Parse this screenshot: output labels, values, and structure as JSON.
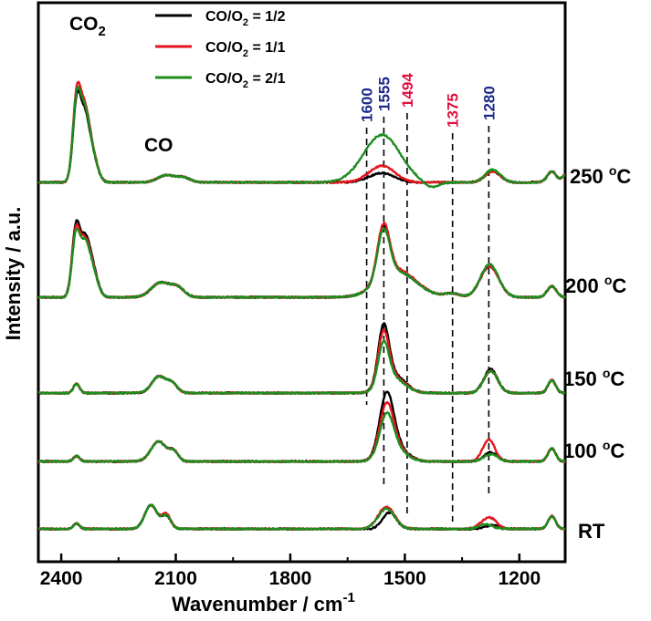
{
  "chart_data": {
    "type": "line",
    "xlabel": "Wavenumber / cm",
    "xlabel_sup": "-1",
    "ylabel": "Intensity / a.u.",
    "x_reversed": true,
    "xlim": [
      2460,
      1080
    ],
    "x_ticks": [
      2400,
      2100,
      1800,
      1500,
      1200
    ],
    "grid": false,
    "legend_position": "top-left",
    "legend": [
      {
        "pre": "CO/O",
        "sub": "2",
        "post": " = 1/2",
        "color": "#000000"
      },
      {
        "pre": "CO/O",
        "sub": "2",
        "post": " = 1/1",
        "color": "#e8131c"
      },
      {
        "pre": "CO/O",
        "sub": "2",
        "post": " = 2/1",
        "color": "#1e8c1e"
      }
    ],
    "annotations": {
      "co2": {
        "main": "CO",
        "sub": "2"
      },
      "co": "CO"
    },
    "peak_markers": [
      {
        "x": 1600,
        "label": "1600",
        "color": "#1c2a8a"
      },
      {
        "x": 1555,
        "label": "1555",
        "color": "#1c2a8a"
      },
      {
        "x": 1494,
        "label": "1494",
        "color": "#e01040"
      },
      {
        "x": 1375,
        "label": "1375",
        "color": "#e01040"
      },
      {
        "x": 1280,
        "label": "1280",
        "color": "#1c2a8a"
      }
    ],
    "temperatures": [
      {
        "label": "250 °C",
        "label_main": "250 ",
        "series": [
          {
            "color": "#000000",
            "peaks": [
              [
                2360,
                80,
                10
              ],
              [
                2340,
                62,
                12
              ],
              [
                2320,
                30,
                14
              ],
              [
                2125,
                8,
                22
              ],
              [
                2080,
                5,
                18
              ],
              [
                1560,
                10,
                34
              ],
              [
                1270,
                12,
                20
              ],
              [
                1115,
                12,
                12
              ],
              [
                1080,
                8,
                8
              ]
            ]
          },
          {
            "color": "#e8131c",
            "peaks": [
              [
                2360,
                88,
                10
              ],
              [
                2340,
                68,
                12
              ],
              [
                2320,
                32,
                14
              ],
              [
                2125,
                8,
                22
              ],
              [
                2080,
                5,
                18
              ],
              [
                1560,
                18,
                34
              ],
              [
                1270,
                12,
                20
              ],
              [
                1115,
                12,
                12
              ],
              [
                1080,
                8,
                8
              ]
            ]
          },
          {
            "color": "#1e8c1e",
            "peaks": [
              [
                2360,
                84,
                10
              ],
              [
                2340,
                65,
                12
              ],
              [
                2320,
                31,
                14
              ],
              [
                2125,
                8,
                22
              ],
              [
                2080,
                5,
                18
              ],
              [
                1560,
                52,
                48
              ],
              [
                1430,
                -6,
                20
              ],
              [
                1270,
                14,
                20
              ],
              [
                1115,
                12,
                12
              ],
              [
                1080,
                8,
                8
              ]
            ]
          }
        ]
      },
      {
        "label": "200 °C",
        "label_main": "200 ",
        "series": [
          {
            "color": "#000000",
            "peaks": [
              [
                2362,
                72,
                10
              ],
              [
                2340,
                52,
                12
              ],
              [
                2320,
                34,
                14
              ],
              [
                2140,
                16,
                24
              ],
              [
                2095,
                10,
                18
              ],
              [
                1556,
                56,
                16
              ],
              [
                1520,
                28,
                50
              ],
              [
                1376,
                4,
                20
              ],
              [
                1278,
                34,
                24
              ],
              [
                1115,
                12,
                12
              ]
            ]
          },
          {
            "color": "#e8131c",
            "peaks": [
              [
                2362,
                68,
                10
              ],
              [
                2340,
                50,
                12
              ],
              [
                2320,
                32,
                14
              ],
              [
                2140,
                16,
                24
              ],
              [
                2095,
                10,
                18
              ],
              [
                1556,
                58,
                16
              ],
              [
                1520,
                30,
                50
              ],
              [
                1376,
                4,
                20
              ],
              [
                1278,
                34,
                24
              ],
              [
                1115,
                12,
                12
              ]
            ]
          },
          {
            "color": "#1e8c1e",
            "peaks": [
              [
                2362,
                64,
                10
              ],
              [
                2340,
                48,
                12
              ],
              [
                2320,
                30,
                14
              ],
              [
                2140,
                16,
                24
              ],
              [
                2095,
                10,
                18
              ],
              [
                1556,
                54,
                16
              ],
              [
                1520,
                28,
                50
              ],
              [
                1376,
                4,
                20
              ],
              [
                1278,
                36,
                24
              ],
              [
                1115,
                12,
                12
              ]
            ]
          }
        ]
      },
      {
        "label": "150 °C",
        "label_main": "150 ",
        "series": [
          {
            "color": "#000000",
            "peaks": [
              [
                2360,
                10,
                8
              ],
              [
                2145,
                18,
                18
              ],
              [
                2110,
                10,
                14
              ],
              [
                1556,
                62,
                14
              ],
              [
                1530,
                20,
                30
              ],
              [
                1275,
                26,
                18
              ],
              [
                1115,
                14,
                10
              ]
            ]
          },
          {
            "color": "#e8131c",
            "peaks": [
              [
                2360,
                10,
                8
              ],
              [
                2145,
                18,
                18
              ],
              [
                2110,
                10,
                14
              ],
              [
                1556,
                56,
                14
              ],
              [
                1530,
                18,
                30
              ],
              [
                1275,
                24,
                18
              ],
              [
                1115,
                14,
                10
              ]
            ]
          },
          {
            "color": "#1e8c1e",
            "peaks": [
              [
                2360,
                10,
                8
              ],
              [
                2145,
                18,
                18
              ],
              [
                2110,
                10,
                14
              ],
              [
                1556,
                46,
                14
              ],
              [
                1530,
                16,
                30
              ],
              [
                1275,
                24,
                18
              ],
              [
                1115,
                14,
                10
              ]
            ]
          }
        ]
      },
      {
        "label": "100 °C",
        "label_main": "100 ",
        "series": [
          {
            "color": "#000000",
            "peaks": [
              [
                2360,
                6,
                8
              ],
              [
                2145,
                22,
                20
              ],
              [
                2105,
                10,
                12
              ],
              [
                1548,
                62,
                18
              ],
              [
                1528,
                18,
                30
              ],
              [
                1275,
                10,
                18
              ],
              [
                1115,
                14,
                10
              ]
            ]
          },
          {
            "color": "#e8131c",
            "peaks": [
              [
                2360,
                6,
                8
              ],
              [
                2145,
                22,
                20
              ],
              [
                2105,
                10,
                12
              ],
              [
                1548,
                52,
                18
              ],
              [
                1528,
                16,
                30
              ],
              [
                1280,
                24,
                16
              ],
              [
                1115,
                14,
                10
              ]
            ]
          },
          {
            "color": "#1e8c1e",
            "peaks": [
              [
                2360,
                6,
                8
              ],
              [
                2145,
                22,
                20
              ],
              [
                2105,
                10,
                12
              ],
              [
                1548,
                42,
                18
              ],
              [
                1528,
                14,
                30
              ],
              [
                1275,
                8,
                18
              ],
              [
                1115,
                14,
                10
              ]
            ]
          }
        ]
      },
      {
        "label": "RT",
        "label_main": "RT",
        "series": [
          {
            "color": "#000000",
            "peaks": [
              [
                2360,
                6,
                8
              ],
              [
                2165,
                26,
                16
              ],
              [
                2125,
                14,
                12
              ],
              [
                1540,
                18,
                18
              ],
              [
                1270,
                4,
                18
              ],
              [
                1115,
                14,
                10
              ]
            ]
          },
          {
            "color": "#e8131c",
            "peaks": [
              [
                2360,
                6,
                8
              ],
              [
                2165,
                26,
                16
              ],
              [
                2125,
                16,
                12
              ],
              [
                1548,
                24,
                22
              ],
              [
                1290,
                8,
                18
              ],
              [
                1270,
                7,
                14
              ],
              [
                1115,
                14,
                10
              ]
            ]
          },
          {
            "color": "#1e8c1e",
            "peaks": [
              [
                2360,
                6,
                8
              ],
              [
                2165,
                26,
                16
              ],
              [
                2125,
                14,
                12
              ],
              [
                1548,
                22,
                22
              ],
              [
                1290,
                5,
                18
              ],
              [
                1115,
                14,
                10
              ]
            ]
          }
        ]
      }
    ]
  }
}
